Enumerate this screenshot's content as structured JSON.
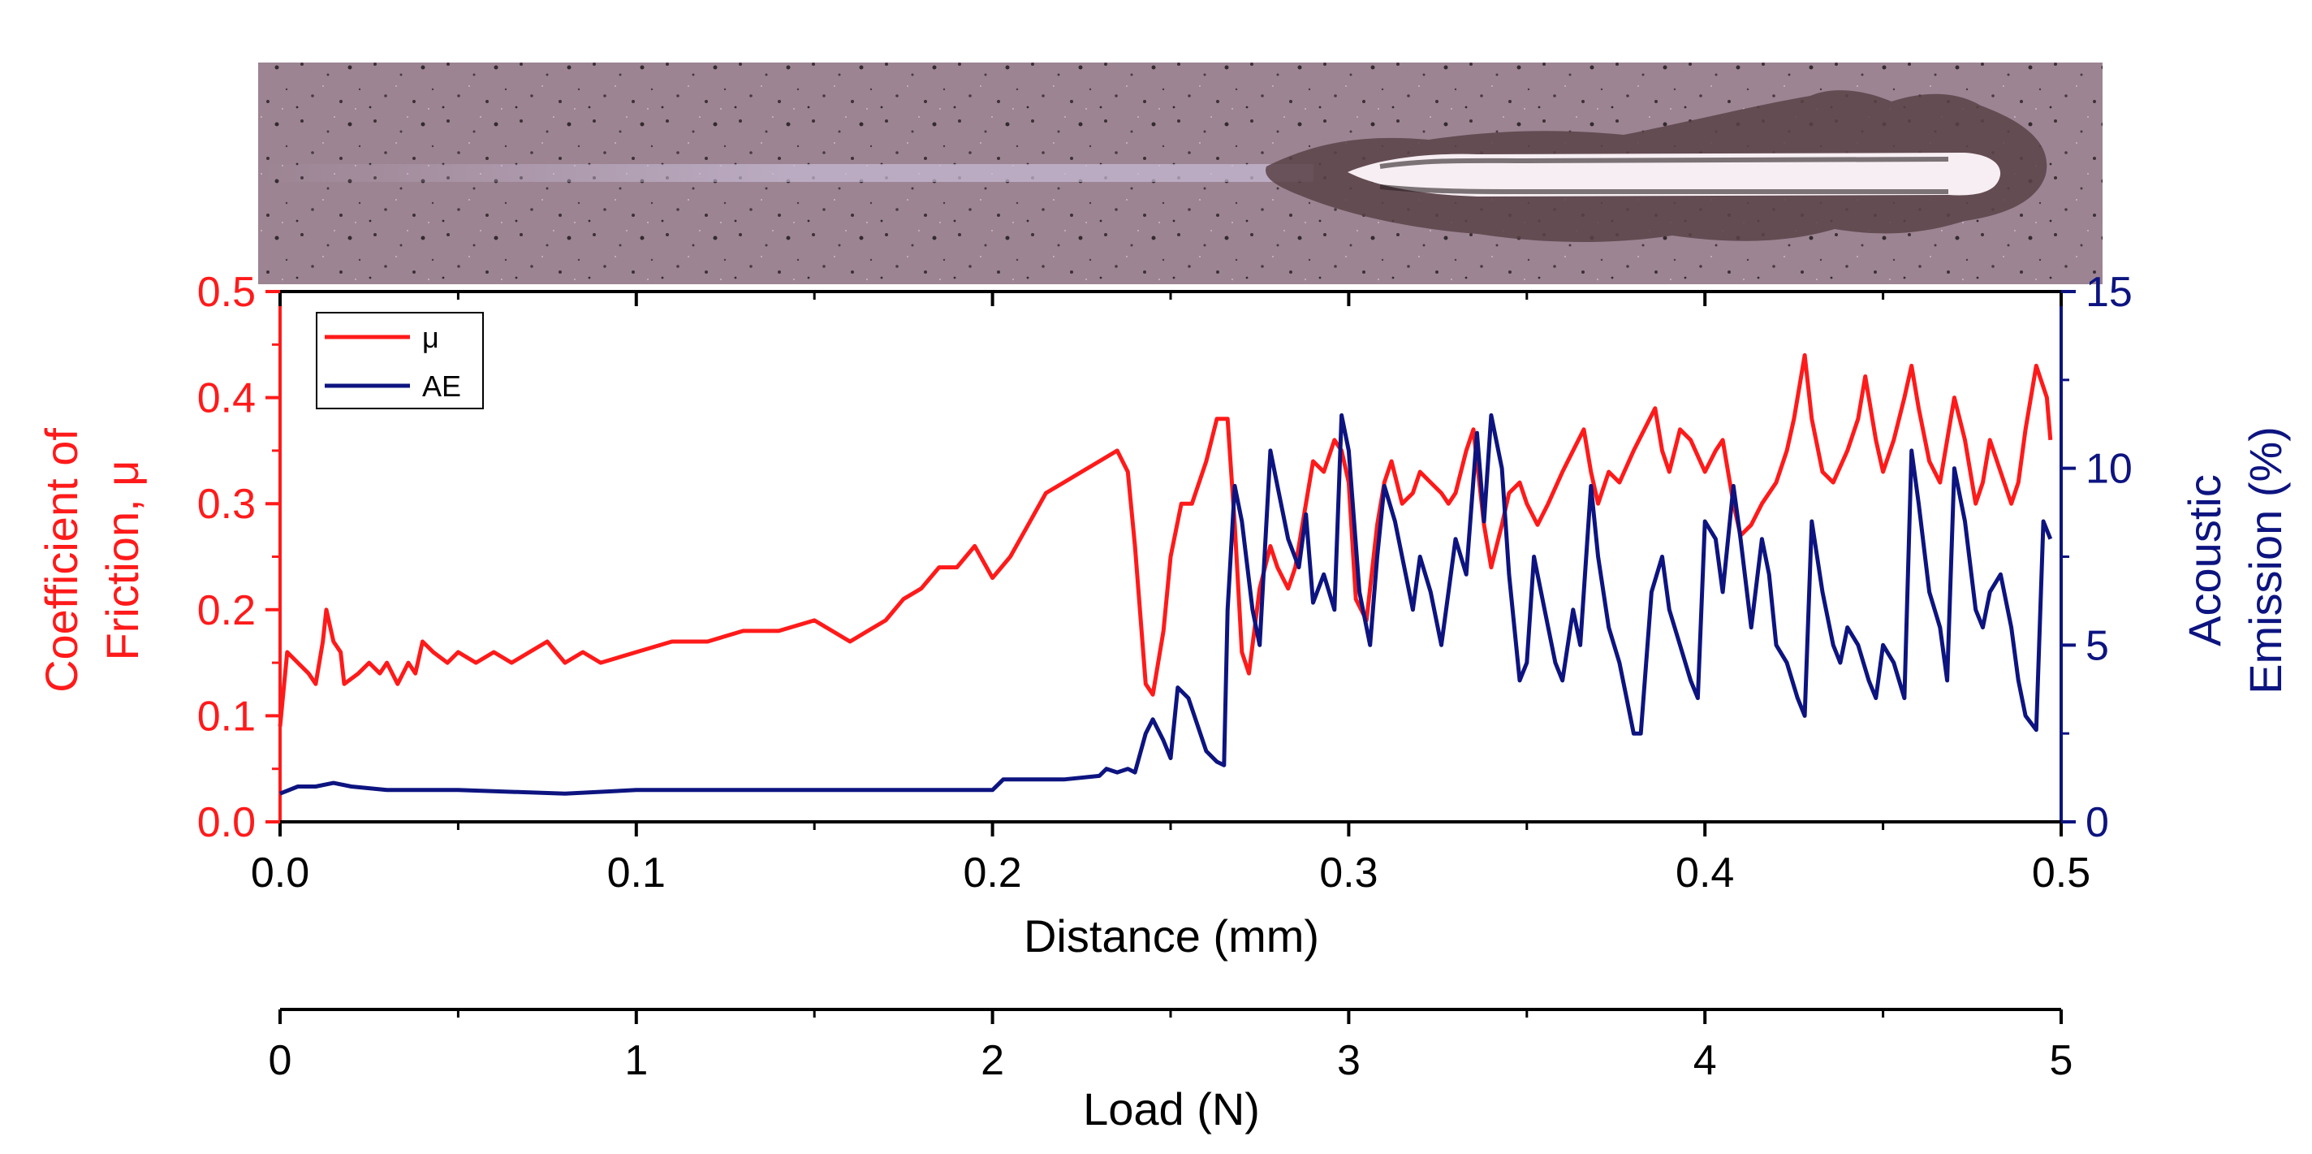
{
  "colors": {
    "mu": "#ff1a1a",
    "ae": "#0d1480",
    "axis": "#000000",
    "scratch_surface": "#9a8090",
    "scratch_groove": "#fbf3f6",
    "scratch_debris": "#4a3a40"
  },
  "micrograph": {
    "description_icon": "scratch-track-micrograph"
  },
  "chart_data": {
    "type": "line",
    "grid": false,
    "legend_position": "top-left",
    "x": {
      "label": "Distance (mm)",
      "range": [
        0,
        0.5
      ],
      "ticks": [
        "0.0",
        "0.1",
        "0.2",
        "0.3",
        "0.4",
        "0.5"
      ]
    },
    "x2": {
      "label": "Load (N)",
      "range": [
        0,
        5
      ],
      "ticks": [
        "0",
        "1",
        "2",
        "3",
        "4",
        "5"
      ]
    },
    "y_left": {
      "label": [
        "Coefficient of",
        "Friction, μ"
      ],
      "range": [
        0,
        0.5
      ],
      "ticks": [
        "0.0",
        "0.1",
        "0.2",
        "0.3",
        "0.4",
        "0.5"
      ]
    },
    "y_right": {
      "label": [
        "Acoustic",
        "Emission (%)"
      ],
      "range": [
        0,
        15
      ],
      "ticks": [
        "0",
        "5",
        "10",
        "15"
      ]
    },
    "series": [
      {
        "name": "μ",
        "axis": "left",
        "points": [
          [
            0.0,
            0.09
          ],
          [
            0.002,
            0.16
          ],
          [
            0.005,
            0.15
          ],
          [
            0.008,
            0.14
          ],
          [
            0.01,
            0.13
          ],
          [
            0.012,
            0.17
          ],
          [
            0.013,
            0.2
          ],
          [
            0.015,
            0.17
          ],
          [
            0.017,
            0.16
          ],
          [
            0.018,
            0.13
          ],
          [
            0.022,
            0.14
          ],
          [
            0.025,
            0.15
          ],
          [
            0.028,
            0.14
          ],
          [
            0.03,
            0.15
          ],
          [
            0.033,
            0.13
          ],
          [
            0.036,
            0.15
          ],
          [
            0.038,
            0.14
          ],
          [
            0.04,
            0.17
          ],
          [
            0.043,
            0.16
          ],
          [
            0.047,
            0.15
          ],
          [
            0.05,
            0.16
          ],
          [
            0.055,
            0.15
          ],
          [
            0.06,
            0.16
          ],
          [
            0.065,
            0.15
          ],
          [
            0.07,
            0.16
          ],
          [
            0.075,
            0.17
          ],
          [
            0.08,
            0.15
          ],
          [
            0.085,
            0.16
          ],
          [
            0.09,
            0.15
          ],
          [
            0.1,
            0.16
          ],
          [
            0.11,
            0.17
          ],
          [
            0.12,
            0.17
          ],
          [
            0.13,
            0.18
          ],
          [
            0.14,
            0.18
          ],
          [
            0.15,
            0.19
          ],
          [
            0.155,
            0.18
          ],
          [
            0.16,
            0.17
          ],
          [
            0.165,
            0.18
          ],
          [
            0.17,
            0.19
          ],
          [
            0.175,
            0.21
          ],
          [
            0.18,
            0.22
          ],
          [
            0.185,
            0.24
          ],
          [
            0.19,
            0.24
          ],
          [
            0.195,
            0.26
          ],
          [
            0.2,
            0.23
          ],
          [
            0.205,
            0.25
          ],
          [
            0.21,
            0.28
          ],
          [
            0.215,
            0.31
          ],
          [
            0.22,
            0.32
          ],
          [
            0.225,
            0.33
          ],
          [
            0.23,
            0.34
          ],
          [
            0.235,
            0.35
          ],
          [
            0.238,
            0.33
          ],
          [
            0.24,
            0.26
          ],
          [
            0.243,
            0.13
          ],
          [
            0.245,
            0.12
          ],
          [
            0.248,
            0.18
          ],
          [
            0.25,
            0.25
          ],
          [
            0.253,
            0.3
          ],
          [
            0.256,
            0.3
          ],
          [
            0.26,
            0.34
          ],
          [
            0.263,
            0.38
          ],
          [
            0.266,
            0.38
          ],
          [
            0.268,
            0.28
          ],
          [
            0.27,
            0.16
          ],
          [
            0.272,
            0.14
          ],
          [
            0.275,
            0.22
          ],
          [
            0.278,
            0.26
          ],
          [
            0.28,
            0.24
          ],
          [
            0.283,
            0.22
          ],
          [
            0.285,
            0.24
          ],
          [
            0.288,
            0.3
          ],
          [
            0.29,
            0.34
          ],
          [
            0.293,
            0.33
          ],
          [
            0.296,
            0.36
          ],
          [
            0.298,
            0.35
          ],
          [
            0.3,
            0.32
          ],
          [
            0.302,
            0.21
          ],
          [
            0.305,
            0.19
          ],
          [
            0.308,
            0.28
          ],
          [
            0.31,
            0.32
          ],
          [
            0.312,
            0.34
          ],
          [
            0.315,
            0.3
          ],
          [
            0.318,
            0.31
          ],
          [
            0.32,
            0.33
          ],
          [
            0.323,
            0.32
          ],
          [
            0.326,
            0.31
          ],
          [
            0.328,
            0.3
          ],
          [
            0.33,
            0.31
          ],
          [
            0.333,
            0.35
          ],
          [
            0.335,
            0.37
          ],
          [
            0.338,
            0.28
          ],
          [
            0.34,
            0.24
          ],
          [
            0.343,
            0.28
          ],
          [
            0.345,
            0.31
          ],
          [
            0.348,
            0.32
          ],
          [
            0.35,
            0.3
          ],
          [
            0.353,
            0.28
          ],
          [
            0.356,
            0.3
          ],
          [
            0.36,
            0.33
          ],
          [
            0.363,
            0.35
          ],
          [
            0.366,
            0.37
          ],
          [
            0.368,
            0.33
          ],
          [
            0.37,
            0.3
          ],
          [
            0.373,
            0.33
          ],
          [
            0.376,
            0.32
          ],
          [
            0.38,
            0.35
          ],
          [
            0.383,
            0.37
          ],
          [
            0.386,
            0.39
          ],
          [
            0.388,
            0.35
          ],
          [
            0.39,
            0.33
          ],
          [
            0.393,
            0.37
          ],
          [
            0.396,
            0.36
          ],
          [
            0.4,
            0.33
          ],
          [
            0.403,
            0.35
          ],
          [
            0.405,
            0.36
          ],
          [
            0.408,
            0.3
          ],
          [
            0.41,
            0.27
          ],
          [
            0.413,
            0.28
          ],
          [
            0.416,
            0.3
          ],
          [
            0.42,
            0.32
          ],
          [
            0.423,
            0.35
          ],
          [
            0.425,
            0.38
          ],
          [
            0.428,
            0.44
          ],
          [
            0.43,
            0.38
          ],
          [
            0.433,
            0.33
          ],
          [
            0.436,
            0.32
          ],
          [
            0.44,
            0.35
          ],
          [
            0.443,
            0.38
          ],
          [
            0.445,
            0.42
          ],
          [
            0.448,
            0.36
          ],
          [
            0.45,
            0.33
          ],
          [
            0.453,
            0.36
          ],
          [
            0.456,
            0.4
          ],
          [
            0.458,
            0.43
          ],
          [
            0.46,
            0.39
          ],
          [
            0.463,
            0.34
          ],
          [
            0.466,
            0.32
          ],
          [
            0.468,
            0.36
          ],
          [
            0.47,
            0.4
          ],
          [
            0.473,
            0.36
          ],
          [
            0.476,
            0.3
          ],
          [
            0.478,
            0.32
          ],
          [
            0.48,
            0.36
          ],
          [
            0.483,
            0.33
          ],
          [
            0.486,
            0.3
          ],
          [
            0.488,
            0.32
          ],
          [
            0.49,
            0.37
          ],
          [
            0.493,
            0.43
          ],
          [
            0.496,
            0.4
          ],
          [
            0.497,
            0.36
          ]
        ]
      },
      {
        "name": "AE",
        "axis": "right",
        "points": [
          [
            0.0,
            0.8
          ],
          [
            0.005,
            1.0
          ],
          [
            0.01,
            1.0
          ],
          [
            0.015,
            1.1
          ],
          [
            0.02,
            1.0
          ],
          [
            0.03,
            0.9
          ],
          [
            0.05,
            0.9
          ],
          [
            0.08,
            0.8
          ],
          [
            0.1,
            0.9
          ],
          [
            0.15,
            0.9
          ],
          [
            0.18,
            0.9
          ],
          [
            0.2,
            0.9
          ],
          [
            0.203,
            1.2
          ],
          [
            0.21,
            1.2
          ],
          [
            0.22,
            1.2
          ],
          [
            0.23,
            1.3
          ],
          [
            0.232,
            1.5
          ],
          [
            0.235,
            1.4
          ],
          [
            0.238,
            1.5
          ],
          [
            0.24,
            1.4
          ],
          [
            0.243,
            2.5
          ],
          [
            0.245,
            2.9
          ],
          [
            0.248,
            2.3
          ],
          [
            0.25,
            1.8
          ],
          [
            0.252,
            3.8
          ],
          [
            0.255,
            3.5
          ],
          [
            0.258,
            2.6
          ],
          [
            0.26,
            2.0
          ],
          [
            0.263,
            1.7
          ],
          [
            0.265,
            1.6
          ],
          [
            0.266,
            6.0
          ],
          [
            0.268,
            9.5
          ],
          [
            0.27,
            8.5
          ],
          [
            0.273,
            6.0
          ],
          [
            0.275,
            5.0
          ],
          [
            0.278,
            10.5
          ],
          [
            0.28,
            9.5
          ],
          [
            0.283,
            8.0
          ],
          [
            0.286,
            7.2
          ],
          [
            0.288,
            8.7
          ],
          [
            0.29,
            6.2
          ],
          [
            0.293,
            7.0
          ],
          [
            0.296,
            6.0
          ],
          [
            0.298,
            11.5
          ],
          [
            0.3,
            10.5
          ],
          [
            0.303,
            6.5
          ],
          [
            0.306,
            5.0
          ],
          [
            0.308,
            7.5
          ],
          [
            0.31,
            9.5
          ],
          [
            0.313,
            8.5
          ],
          [
            0.316,
            7.0
          ],
          [
            0.318,
            6.0
          ],
          [
            0.32,
            7.5
          ],
          [
            0.323,
            6.5
          ],
          [
            0.326,
            5.0
          ],
          [
            0.328,
            6.5
          ],
          [
            0.33,
            8.0
          ],
          [
            0.333,
            7.0
          ],
          [
            0.336,
            11.0
          ],
          [
            0.338,
            8.5
          ],
          [
            0.34,
            11.5
          ],
          [
            0.343,
            10.0
          ],
          [
            0.345,
            7.0
          ],
          [
            0.348,
            4.0
          ],
          [
            0.35,
            4.5
          ],
          [
            0.352,
            7.5
          ],
          [
            0.355,
            6.0
          ],
          [
            0.358,
            4.5
          ],
          [
            0.36,
            4.0
          ],
          [
            0.363,
            6.0
          ],
          [
            0.365,
            5.0
          ],
          [
            0.368,
            9.5
          ],
          [
            0.37,
            7.5
          ],
          [
            0.373,
            5.5
          ],
          [
            0.376,
            4.5
          ],
          [
            0.378,
            3.5
          ],
          [
            0.38,
            2.5
          ],
          [
            0.382,
            2.5
          ],
          [
            0.385,
            6.5
          ],
          [
            0.388,
            7.5
          ],
          [
            0.39,
            6.0
          ],
          [
            0.393,
            5.0
          ],
          [
            0.396,
            4.0
          ],
          [
            0.398,
            3.5
          ],
          [
            0.4,
            8.5
          ],
          [
            0.403,
            8.0
          ],
          [
            0.405,
            6.5
          ],
          [
            0.408,
            9.5
          ],
          [
            0.41,
            8.0
          ],
          [
            0.413,
            5.5
          ],
          [
            0.416,
            8.0
          ],
          [
            0.418,
            7.0
          ],
          [
            0.42,
            5.0
          ],
          [
            0.423,
            4.5
          ],
          [
            0.426,
            3.5
          ],
          [
            0.428,
            3.0
          ],
          [
            0.43,
            8.5
          ],
          [
            0.433,
            6.5
          ],
          [
            0.436,
            5.0
          ],
          [
            0.438,
            4.5
          ],
          [
            0.44,
            5.5
          ],
          [
            0.443,
            5.0
          ],
          [
            0.446,
            4.0
          ],
          [
            0.448,
            3.5
          ],
          [
            0.45,
            5.0
          ],
          [
            0.453,
            4.5
          ],
          [
            0.456,
            3.5
          ],
          [
            0.458,
            10.5
          ],
          [
            0.46,
            9.0
          ],
          [
            0.463,
            6.5
          ],
          [
            0.466,
            5.5
          ],
          [
            0.468,
            4.0
          ],
          [
            0.47,
            10.0
          ],
          [
            0.473,
            8.5
          ],
          [
            0.476,
            6.0
          ],
          [
            0.478,
            5.5
          ],
          [
            0.48,
            6.5
          ],
          [
            0.483,
            7.0
          ],
          [
            0.486,
            5.5
          ],
          [
            0.488,
            4.0
          ],
          [
            0.49,
            3.0
          ],
          [
            0.493,
            2.6
          ],
          [
            0.495,
            8.5
          ],
          [
            0.497,
            8.0
          ]
        ]
      }
    ]
  }
}
